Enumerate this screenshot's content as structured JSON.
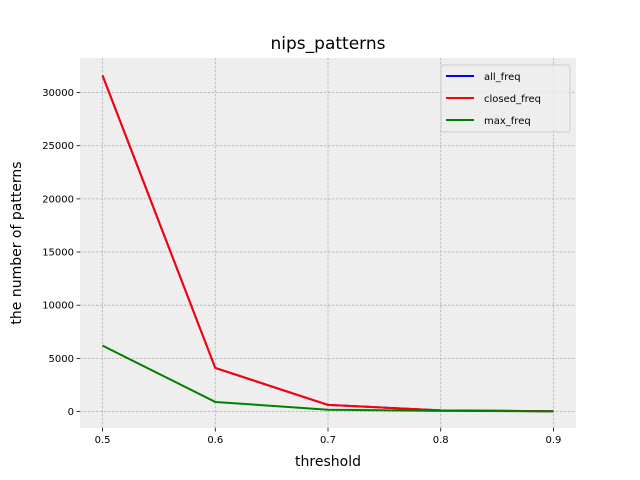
{
  "chart_data": {
    "type": "line",
    "title": "nips_patterns",
    "xlabel": "threshold",
    "ylabel": "the number of patterns",
    "x": [
      0.5,
      0.6,
      0.7,
      0.8,
      0.9
    ],
    "x_ticks": [
      "0.5",
      "0.6",
      "0.7",
      "0.8",
      "0.9"
    ],
    "y_ticks": [
      "0",
      "5000",
      "10000",
      "15000",
      "20000",
      "25000",
      "30000"
    ],
    "xlim": [
      0.48,
      0.92
    ],
    "ylim": [
      -1550,
      33250
    ],
    "grid": true,
    "legend_position": "upper right",
    "series": [
      {
        "name": "all_freq",
        "color": "#0000ff",
        "values": [
          31600,
          4100,
          620,
          110,
          25
        ]
      },
      {
        "name": "closed_freq",
        "color": "#ff0000",
        "values": [
          31600,
          4100,
          620,
          110,
          25
        ]
      },
      {
        "name": "max_freq",
        "color": "#008000",
        "values": [
          6200,
          900,
          170,
          60,
          15
        ]
      }
    ]
  }
}
